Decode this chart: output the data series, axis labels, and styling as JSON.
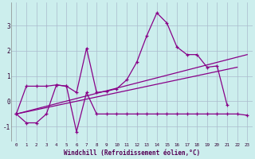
{
  "xlabel": "Windchill (Refroidissement éolien,°C)",
  "xlim": [
    -0.5,
    23.5
  ],
  "ylim": [
    -1.6,
    3.9
  ],
  "bg_color": "#cceeed",
  "line_color": "#880088",
  "grid_color": "#aabbcc",
  "xticks": [
    0,
    1,
    2,
    3,
    4,
    5,
    6,
    7,
    8,
    9,
    10,
    11,
    12,
    13,
    14,
    15,
    16,
    17,
    18,
    19,
    20,
    21,
    22,
    23
  ],
  "yticks": [
    -1,
    0,
    1,
    2,
    3
  ],
  "series": [
    {
      "x": [
        0,
        1,
        2,
        3,
        4,
        5,
        6,
        7,
        8,
        9,
        10,
        11,
        12,
        13,
        14,
        15,
        16,
        17,
        18,
        19,
        20,
        21
      ],
      "y": [
        -0.5,
        0.6,
        0.6,
        0.6,
        0.65,
        0.6,
        0.35,
        2.1,
        0.35,
        0.4,
        0.5,
        0.85,
        1.55,
        2.6,
        3.5,
        3.1,
        2.15,
        1.85,
        1.85,
        1.35,
        1.4,
        -0.15
      ]
    },
    {
      "x": [
        0,
        1,
        2,
        3,
        4,
        5,
        6,
        7,
        8,
        9,
        10,
        11,
        12,
        13,
        14,
        15,
        16,
        17,
        18,
        19,
        20,
        21,
        22,
        23
      ],
      "y": [
        -0.5,
        -0.85,
        -0.85,
        -0.5,
        0.65,
        0.6,
        -1.2,
        0.35,
        -0.5,
        -0.5,
        -0.5,
        -0.5,
        -0.5,
        -0.5,
        -0.5,
        -0.5,
        -0.5,
        -0.5,
        -0.5,
        -0.5,
        -0.5,
        -0.5,
        -0.5,
        -0.55
      ]
    },
    {
      "x": [
        0,
        23
      ],
      "y": [
        -0.5,
        1.85
      ]
    },
    {
      "x": [
        0,
        22
      ],
      "y": [
        -0.5,
        1.35
      ]
    }
  ]
}
